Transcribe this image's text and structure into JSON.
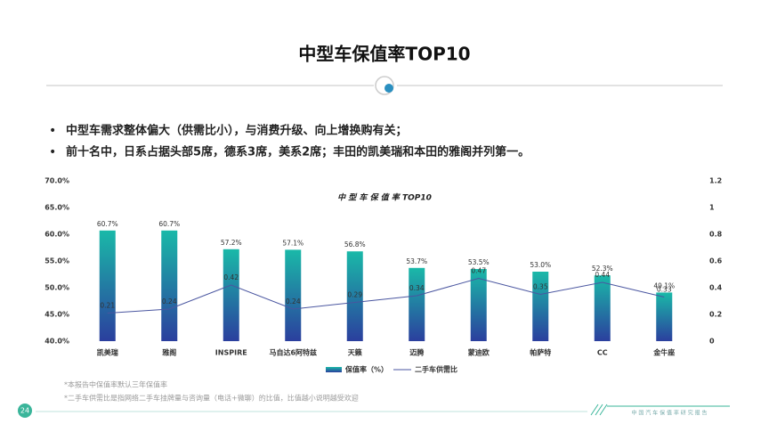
{
  "header": {
    "title": "中型车保值率TOP10"
  },
  "bullets": [
    "中型车需求整体偏大（供需比小），与消费升级、向上增换购有关；",
    "前十名中，日系占据头部5席，德系3席，美系2席；丰田的凯美瑞和本田的雅阁并列第一。"
  ],
  "chart_data": {
    "type": "bar",
    "title": "中 型 车 保 值 率 TOP10",
    "categories": [
      "凯美瑞",
      "雅阁",
      "INSPIRE",
      "马自达6阿特兹",
      "天籁",
      "迈腾",
      "蒙迪欧",
      "帕萨特",
      "CC",
      "金牛座"
    ],
    "series": [
      {
        "name": "保值率（%）",
        "color": "#1ab9a8",
        "values": [
          60.7,
          60.7,
          57.2,
          57.1,
          56.8,
          53.7,
          53.5,
          53.0,
          52.3,
          49.1
        ],
        "value_labels": [
          "60.7%",
          "60.7%",
          "57.2%",
          "57.1%",
          "56.8%",
          "53.7%",
          "53.5%",
          "53.0%",
          "52.3%",
          "49.1%"
        ]
      },
      {
        "name": "二手车供需比",
        "type": "line",
        "axis": "y2",
        "color": "#4a56a0",
        "values": [
          0.21,
          0.24,
          0.42,
          0.24,
          0.29,
          0.34,
          0.47,
          0.35,
          0.44,
          0.33
        ]
      }
    ],
    "ylim": [
      40,
      70
    ],
    "yticks": [
      {
        "value": 40,
        "label": "40.0%"
      },
      {
        "value": 45,
        "label": "45.0%"
      },
      {
        "value": 50,
        "label": "50.0%"
      },
      {
        "value": 55,
        "label": "55.0%"
      },
      {
        "value": 60,
        "label": "60.0%"
      },
      {
        "value": 65,
        "label": "65.0%"
      },
      {
        "value": 70,
        "label": "70.0%"
      }
    ],
    "y2lim": [
      0,
      1.2
    ],
    "y2ticks": [
      0,
      0.2,
      0.4,
      0.6,
      0.8,
      1,
      1.2
    ],
    "legend": "bottom"
  },
  "footnotes": [
    "*本报告中保值率默认三年保值率",
    "*二手车供需比是指网络二手车挂牌量与咨询量（电话+微聊）的比值，比值越小说明越受欢迎"
  ],
  "page_number": "24",
  "footer_text": "中 国 汽 车 保 值 率 研 究 报 告"
}
